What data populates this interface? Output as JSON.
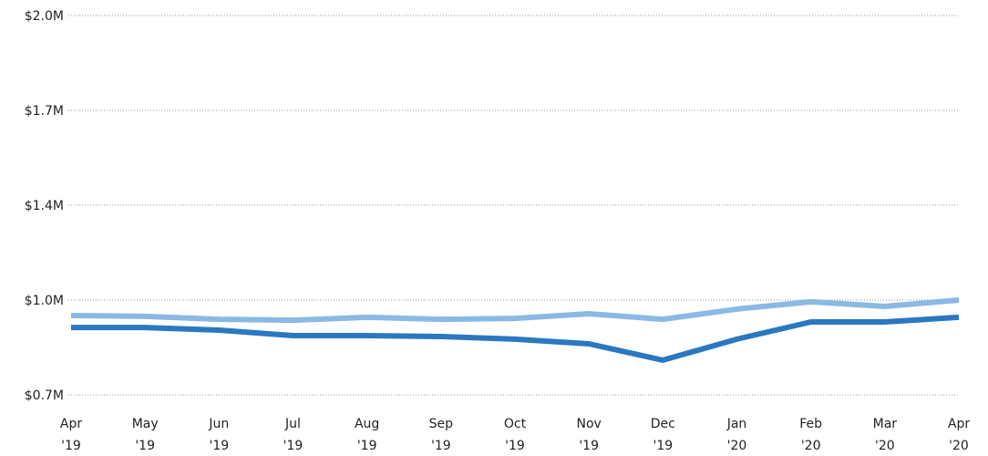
{
  "chart_data": {
    "type": "line",
    "categories": [
      [
        "Apr",
        "'19"
      ],
      [
        "May",
        "'19"
      ],
      [
        "Jun",
        "'19"
      ],
      [
        "Jul",
        "'19"
      ],
      [
        "Aug",
        "'19"
      ],
      [
        "Sep",
        "'19"
      ],
      [
        "Oct",
        "'19"
      ],
      [
        "Nov",
        "'19"
      ],
      [
        "Dec",
        "'19"
      ],
      [
        "Jan",
        "'20"
      ],
      [
        "Feb",
        "'20"
      ],
      [
        "Mar",
        "'20"
      ],
      [
        "Apr",
        "'20"
      ]
    ],
    "series": [
      {
        "color": "#8ab9e3",
        "values": [
          972000,
          969000,
          959000,
          956000,
          966000,
          959000,
          962000,
          978000,
          959000,
          994000,
          1019000,
          1003000,
          1025000
        ]
      },
      {
        "color": "#2a78c2",
        "values": [
          931000,
          931000,
          922000,
          903000,
          903000,
          900000,
          891000,
          875000,
          819000,
          891000,
          950000,
          950000,
          966000
        ]
      }
    ],
    "ylim": [
      700000,
      2000000
    ],
    "yticks": [
      {
        "value": 700000,
        "label": "$0.7M"
      },
      {
        "value": 1025000,
        "label": "$1.0M"
      },
      {
        "value": 1350000,
        "label": "$1.4M"
      },
      {
        "value": 1675000,
        "label": "$1.7M"
      },
      {
        "value": 2000000,
        "label": "$2.0M"
      }
    ],
    "grid": true
  }
}
